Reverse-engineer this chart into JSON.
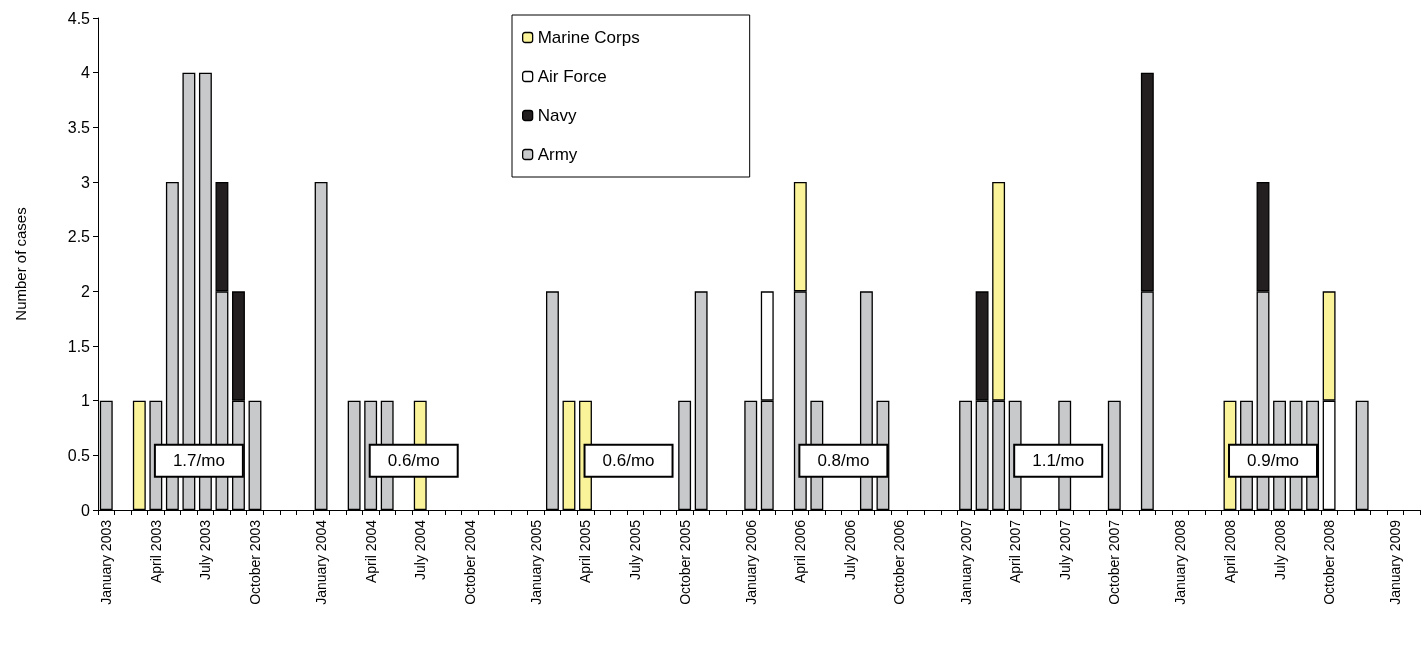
{
  "chart_data": {
    "type": "bar",
    "stacked": true,
    "ylabel": "Number of cases",
    "ylim": [
      0,
      4.5
    ],
    "yticks": [
      0,
      0.5,
      1,
      1.5,
      2,
      2.5,
      3,
      3.5,
      4,
      4.5
    ],
    "grid": false,
    "legend": "top",
    "categories": [
      "January 2003",
      null,
      null,
      "April 2003",
      null,
      null,
      "July 2003",
      null,
      null,
      "October 2003",
      null,
      null,
      null,
      "January 2004",
      null,
      null,
      "April 2004",
      null,
      null,
      "July 2004",
      null,
      null,
      "October 2004",
      null,
      null,
      null,
      "January 2005",
      null,
      null,
      "April 2005",
      null,
      null,
      "July 2005",
      null,
      null,
      "October 2005",
      null,
      null,
      null,
      "January 2006",
      null,
      null,
      "April 2006",
      null,
      null,
      "July 2006",
      null,
      null,
      "October 2006",
      null,
      null,
      null,
      "January 2007",
      null,
      null,
      "April 2007",
      null,
      null,
      "July 2007",
      null,
      null,
      "October 2007",
      null,
      null,
      null,
      "January 2008",
      null,
      null,
      "April 2008",
      null,
      null,
      "July 2008",
      null,
      null,
      "October 2008",
      null,
      null,
      null,
      "January 2009",
      null
    ],
    "series": [
      {
        "name": "Army",
        "color": "#c8c9cb",
        "values": [
          1,
          null,
          null,
          1,
          3,
          4,
          4,
          2,
          1,
          1,
          null,
          null,
          null,
          3,
          null,
          1,
          1,
          1,
          null,
          null,
          null,
          null,
          null,
          null,
          null,
          null,
          null,
          2,
          null,
          null,
          null,
          null,
          null,
          null,
          null,
          1,
          2,
          null,
          null,
          1,
          1,
          null,
          2,
          1,
          null,
          null,
          2,
          1,
          null,
          null,
          null,
          null,
          1,
          1,
          1,
          1,
          null,
          null,
          1,
          null,
          null,
          1,
          null,
          2,
          null,
          null,
          null,
          null,
          null,
          1,
          2,
          1,
          1,
          1,
          null,
          null,
          1,
          null,
          null,
          null
        ]
      },
      {
        "name": "Navy",
        "color": "#231f20",
        "values": [
          null,
          null,
          null,
          null,
          null,
          null,
          null,
          1,
          1,
          null,
          null,
          null,
          null,
          null,
          null,
          null,
          null,
          null,
          null,
          null,
          null,
          null,
          null,
          null,
          null,
          null,
          null,
          null,
          null,
          null,
          null,
          null,
          null,
          null,
          null,
          null,
          null,
          null,
          null,
          null,
          null,
          null,
          null,
          null,
          null,
          null,
          null,
          null,
          null,
          null,
          null,
          null,
          null,
          1,
          null,
          null,
          null,
          null,
          null,
          null,
          null,
          null,
          null,
          2,
          null,
          null,
          null,
          null,
          null,
          null,
          1,
          null,
          null,
          null,
          null,
          null,
          null,
          null,
          null,
          null
        ]
      },
      {
        "name": "Air Force",
        "color": "#ffffff",
        "values": [
          null,
          null,
          null,
          null,
          null,
          null,
          null,
          null,
          null,
          null,
          null,
          null,
          null,
          null,
          null,
          null,
          null,
          null,
          null,
          null,
          null,
          null,
          null,
          null,
          null,
          null,
          null,
          null,
          null,
          null,
          null,
          null,
          null,
          null,
          null,
          null,
          null,
          null,
          null,
          null,
          1,
          null,
          null,
          null,
          null,
          null,
          null,
          null,
          null,
          null,
          null,
          null,
          null,
          null,
          null,
          null,
          null,
          null,
          null,
          null,
          null,
          null,
          null,
          null,
          null,
          null,
          null,
          null,
          null,
          null,
          null,
          null,
          null,
          null,
          1,
          null,
          null,
          null,
          null,
          null
        ]
      },
      {
        "name": "Marine Corps",
        "color": "#faf39a",
        "values": [
          null,
          null,
          1,
          null,
          null,
          null,
          null,
          null,
          null,
          null,
          null,
          null,
          null,
          null,
          null,
          null,
          null,
          null,
          null,
          1,
          null,
          null,
          null,
          null,
          null,
          null,
          null,
          null,
          1,
          1,
          null,
          null,
          null,
          null,
          null,
          null,
          null,
          null,
          null,
          null,
          null,
          null,
          1,
          null,
          null,
          null,
          null,
          null,
          null,
          null,
          null,
          null,
          null,
          null,
          2,
          null,
          null,
          null,
          null,
          null,
          null,
          null,
          null,
          null,
          null,
          null,
          null,
          null,
          1,
          null,
          null,
          null,
          null,
          null,
          1,
          null,
          null,
          null,
          null,
          null
        ]
      }
    ],
    "annotations": [
      "1.7/mo",
      "0.6/mo",
      "0.6/mo",
      "0.8/mo",
      "1.1/mo",
      "0.9/mo"
    ]
  }
}
